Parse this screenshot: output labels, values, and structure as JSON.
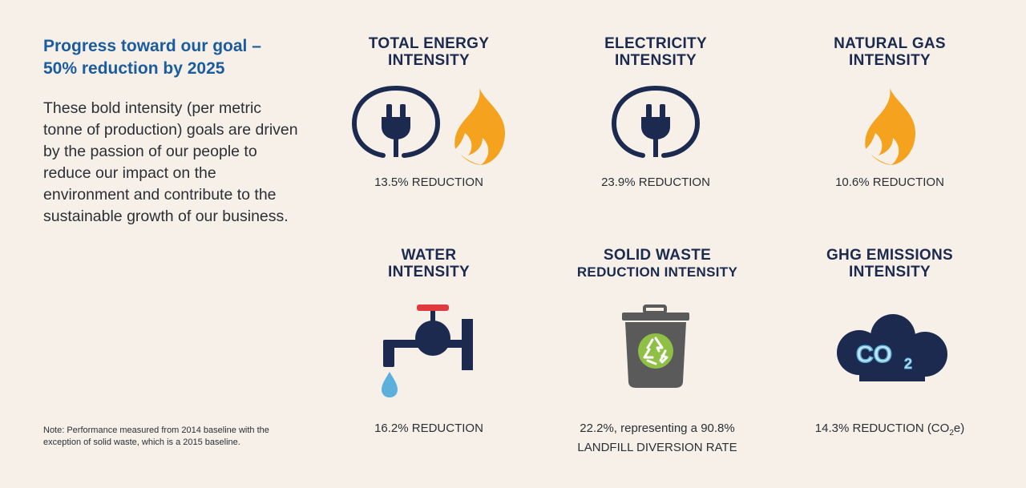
{
  "intro": {
    "title_line1": "Progress toward our goal –",
    "title_line2": "50% reduction by 2025",
    "body": "These bold intensity (per metric tonne of production) goals are driven by the passion of our people to reduce our impact on the environment and contribute to the sustainable growth of our business.",
    "note": "Note: Performance measured from 2014 baseline with the exception of solid waste, which is a 2015 baseline."
  },
  "metrics": {
    "total_energy": {
      "title_line1": "TOTAL ENERGY",
      "title_line2": "INTENSITY",
      "value": "13.5% REDUCTION",
      "icons": [
        "plug-icon",
        "flame-icon"
      ]
    },
    "electricity": {
      "title_line1": "ELECTRICITY",
      "title_line2": "INTENSITY",
      "value": "23.9% REDUCTION",
      "icons": [
        "plug-icon"
      ]
    },
    "natural_gas": {
      "title_line1": "NATURAL GAS",
      "title_line2": "INTENSITY",
      "value": "10.6% REDUCTION",
      "icons": [
        "flame-icon"
      ]
    },
    "water": {
      "title_line1": "WATER",
      "title_line2": "INTENSITY",
      "value": "16.2% REDUCTION",
      "icons": [
        "faucet-icon"
      ]
    },
    "solid_waste": {
      "title_line1": "SOLID WASTE",
      "title_line2": "REDUCTION INTENSITY",
      "value_line1": "22.2%, representing a 90.8%",
      "value_line2": "LANDFILL DIVERSION RATE",
      "icons": [
        "recycle-bin-icon"
      ]
    },
    "ghg": {
      "title_line1": "GHG EMISSIONS",
      "title_line2": "INTENSITY",
      "value_prefix": "14.3% REDUCTION (CO",
      "value_sub": "2",
      "value_suffix": "e)",
      "icons": [
        "co2-cloud-icon"
      ],
      "icon_text": "CO",
      "icon_sub": "2"
    }
  },
  "colors": {
    "background": "#f6f0e8",
    "navy": "#1b2a4e",
    "title_blue": "#1a5c9e",
    "flame_orange": "#f5a21e",
    "tap_red": "#e0393e",
    "water_blue": "#5bb0dc",
    "bin_grey": "#5a5a5a",
    "recycle_green": "#8fc045",
    "co2_light": "#c9e6f5"
  }
}
